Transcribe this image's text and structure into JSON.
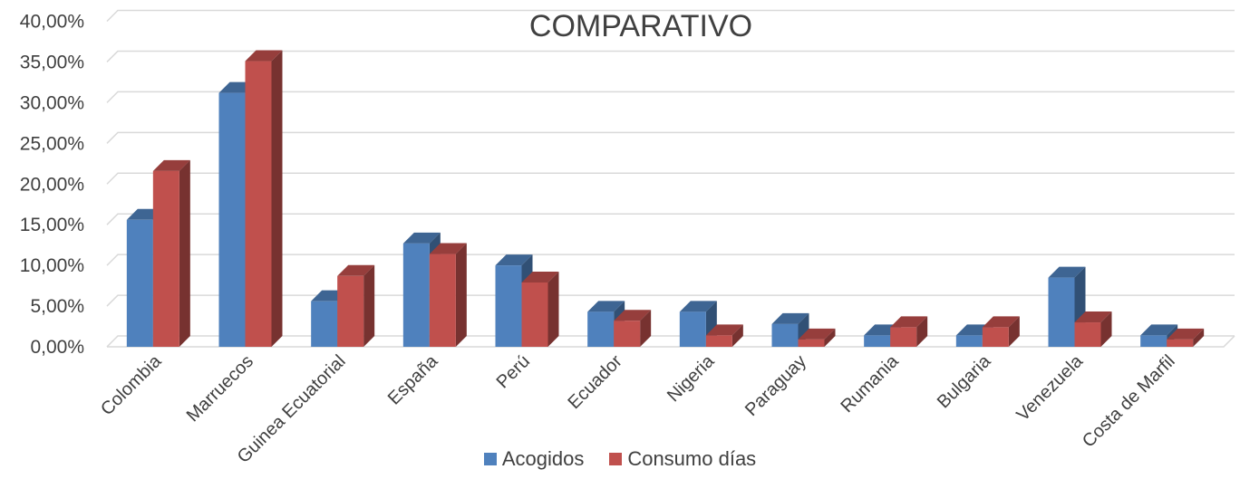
{
  "chart_data": {
    "type": "bar",
    "title": "COMPARATIVO",
    "categories": [
      "Colombia",
      "Marruecos",
      "Guinea Ecuatorial",
      "España",
      "Perú",
      "Ecuador",
      "Nigeria",
      "Paraguay",
      "Rumania",
      "Bulgaria",
      "Venezuela",
      "Costa de Marfil"
    ],
    "series": [
      {
        "name": "Acogidos",
        "color": "#4f81bd",
        "values": [
          15.6,
          31.2,
          5.6,
          12.7,
          10.0,
          4.3,
          4.3,
          2.8,
          1.4,
          1.4,
          8.5,
          1.4
        ]
      },
      {
        "name": "Consumo días",
        "color": "#c0504d",
        "values": [
          21.6,
          35.1,
          8.7,
          11.4,
          7.9,
          3.2,
          1.4,
          0.9,
          2.4,
          2.4,
          3.0,
          0.9
        ]
      }
    ],
    "ylim": [
      0,
      40
    ],
    "yticks": [
      "0,00%",
      "5,00%",
      "10,00%",
      "15,00%",
      "20,00%",
      "25,00%",
      "30,00%",
      "35,00%",
      "40,00%"
    ],
    "grid": true,
    "legend_position": "bottom",
    "style": "3d-clustered-column"
  }
}
